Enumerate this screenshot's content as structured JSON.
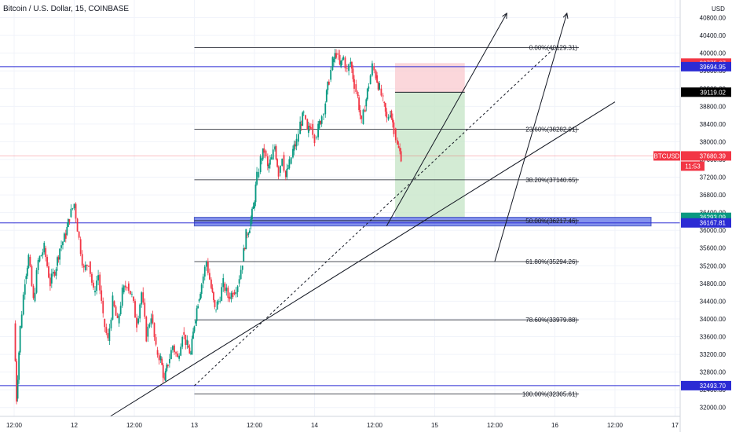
{
  "header": {
    "symbol_title": "Bitcoin / U.S. Dollar, 15, COINBASE",
    "currency": "USD"
  },
  "chart_data": {
    "type": "candlestick",
    "ylim": [
      31800,
      41200
    ],
    "y_ticks": [
      32000,
      32400,
      32800,
      33200,
      33600,
      34000,
      34400,
      34800,
      35200,
      35600,
      36000,
      36400,
      36800,
      37200,
      37600,
      38000,
      38400,
      38800,
      39200,
      39600,
      40000,
      40400,
      40800
    ],
    "x_ticks": [
      {
        "label": "12:00",
        "at": 0.0
      },
      {
        "label": "12",
        "at": 0.5
      },
      {
        "label": "12:00",
        "at": 1.0
      },
      {
        "label": "13",
        "at": 1.5
      },
      {
        "label": "12:00",
        "at": 2.0
      },
      {
        "label": "14",
        "at": 2.5
      },
      {
        "label": "12:00",
        "at": 3.0
      },
      {
        "label": "15",
        "at": 3.5
      },
      {
        "label": "12:00",
        "at": 4.0
      },
      {
        "label": "16",
        "at": 4.5
      },
      {
        "label": "12:00",
        "at": 5.0
      },
      {
        "label": "17",
        "at": 5.5
      }
    ],
    "price_path": [
      [
        0.0,
        33900
      ],
      [
        0.02,
        32200
      ],
      [
        0.05,
        33800
      ],
      [
        0.09,
        34900
      ],
      [
        0.12,
        35400
      ],
      [
        0.16,
        34400
      ],
      [
        0.2,
        35300
      ],
      [
        0.25,
        35600
      ],
      [
        0.3,
        34800
      ],
      [
        0.35,
        35200
      ],
      [
        0.38,
        35600
      ],
      [
        0.43,
        35900
      ],
      [
        0.46,
        36300
      ],
      [
        0.5,
        36600
      ],
      [
        0.54,
        35800
      ],
      [
        0.58,
        35100
      ],
      [
        0.62,
        35300
      ],
      [
        0.66,
        34600
      ],
      [
        0.7,
        35000
      ],
      [
        0.74,
        34000
      ],
      [
        0.78,
        33500
      ],
      [
        0.82,
        34400
      ],
      [
        0.86,
        33900
      ],
      [
        0.9,
        34600
      ],
      [
        0.94,
        34800
      ],
      [
        0.98,
        34500
      ],
      [
        1.02,
        33900
      ],
      [
        1.06,
        34600
      ],
      [
        1.1,
        33600
      ],
      [
        1.14,
        34100
      ],
      [
        1.18,
        33300
      ],
      [
        1.22,
        33100
      ],
      [
        1.25,
        32600
      ],
      [
        1.28,
        33000
      ],
      [
        1.32,
        33400
      ],
      [
        1.36,
        33100
      ],
      [
        1.4,
        33700
      ],
      [
        1.44,
        33400
      ],
      [
        1.47,
        33200
      ],
      [
        1.5,
        33900
      ],
      [
        1.53,
        34400
      ],
      [
        1.56,
        34800
      ],
      [
        1.6,
        35300
      ],
      [
        1.64,
        34700
      ],
      [
        1.67,
        34200
      ],
      [
        1.7,
        34400
      ],
      [
        1.74,
        34800
      ],
      [
        1.78,
        34500
      ],
      [
        1.82,
        34600
      ],
      [
        1.86,
        34800
      ],
      [
        1.9,
        35300
      ],
      [
        1.93,
        35900
      ],
      [
        1.96,
        36100
      ],
      [
        1.99,
        36500
      ],
      [
        2.02,
        37200
      ],
      [
        2.05,
        37600
      ],
      [
        2.08,
        37800
      ],
      [
        2.11,
        37400
      ],
      [
        2.14,
        37600
      ],
      [
        2.17,
        37900
      ],
      [
        2.2,
        37300
      ],
      [
        2.23,
        37700
      ],
      [
        2.26,
        37200
      ],
      [
        2.29,
        37500
      ],
      [
        2.32,
        37800
      ],
      [
        2.35,
        38000
      ],
      [
        2.38,
        38400
      ],
      [
        2.41,
        38600
      ],
      [
        2.44,
        38200
      ],
      [
        2.47,
        38400
      ],
      [
        2.5,
        38100
      ],
      [
        2.53,
        38300
      ],
      [
        2.56,
        38600
      ],
      [
        2.59,
        38900
      ],
      [
        2.62,
        39400
      ],
      [
        2.65,
        39800
      ],
      [
        2.68,
        40000
      ],
      [
        2.71,
        39700
      ],
      [
        2.74,
        39900
      ],
      [
        2.77,
        39600
      ],
      [
        2.8,
        39800
      ],
      [
        2.83,
        39300
      ],
      [
        2.86,
        39000
      ],
      [
        2.89,
        38400
      ],
      [
        2.92,
        38800
      ],
      [
        2.95,
        39300
      ],
      [
        2.98,
        39700
      ],
      [
        3.01,
        39500
      ],
      [
        3.04,
        39200
      ],
      [
        3.07,
        38900
      ],
      [
        3.1,
        38500
      ],
      [
        3.13,
        38700
      ],
      [
        3.16,
        38300
      ],
      [
        3.19,
        37900
      ],
      [
        3.22,
        37680
      ]
    ],
    "fib_levels": [
      {
        "ratio": "0.00%",
        "price": 40129.31,
        "label": "0.00%(40129.31)"
      },
      {
        "ratio": "23.60%",
        "price": 38282.91,
        "label": "23.60%(38282.91)"
      },
      {
        "ratio": "38.20%",
        "price": 37140.65,
        "label": "38.20%(37140.65)"
      },
      {
        "ratio": "50.00%",
        "price": 36217.46,
        "label": "50.00%(36217.46)"
      },
      {
        "ratio": "61.80%",
        "price": 35294.26,
        "label": "61.80%(35294.26)"
      },
      {
        "ratio": "78.60%",
        "price": 33979.88,
        "label": "78.60%(33979.88)"
      },
      {
        "ratio": "100.00%",
        "price": 32305.61,
        "label": "100.00%(32305.61)"
      }
    ],
    "horizontal_levels": [
      {
        "price": 39694.95,
        "label": "39694.95",
        "color": "#2b2bd4"
      },
      {
        "price": 36167.81,
        "label": "36167.81",
        "color": "#2b2bd4"
      },
      {
        "price": 32493.7,
        "label": "32493.70",
        "color": "#2b2bd4"
      }
    ],
    "price_tags": [
      {
        "price": 39775.67,
        "label": "39775.67",
        "bg": "#f23645",
        "fg": "#ffffff"
      },
      {
        "price": 39119.02,
        "label": "39119.02",
        "bg": "#000000",
        "fg": "#ffffff"
      },
      {
        "price": 37680.39,
        "label": "37680.39",
        "bg": "#f23645",
        "fg": "#ffffff"
      },
      {
        "price": 36293.09,
        "label": "36293.09",
        "bg": "#089981",
        "fg": "#ffffff"
      }
    ],
    "last_price": {
      "symbol": "BTCUSD",
      "price": 37680.39,
      "countdown": "11:53",
      "color": "#f23645"
    },
    "position": {
      "entry": 39119.02,
      "stop": 39775.67,
      "target": 36293.09,
      "t_start": 3.17,
      "t_end": 3.75,
      "stop_color": "#f9c9cf",
      "target_color": "#c8e6c9"
    },
    "support_zone": {
      "top": 36293.09,
      "bottom": 36100,
      "t_start": 1.5,
      "t_end": 5.3,
      "color": "#5b6ee8"
    },
    "trendlines": [
      {
        "from": [
          0.8,
          31800
        ],
        "to": [
          5.0,
          38900
        ],
        "style": "solid"
      },
      {
        "from": [
          1.5,
          32493.7
        ],
        "to": [
          4.5,
          40129.31
        ],
        "style": "dashed"
      }
    ],
    "arrows": [
      {
        "from": [
          3.1,
          36100
        ],
        "to": [
          4.1,
          40900
        ]
      },
      {
        "from": [
          4.0,
          35300
        ],
        "to": [
          4.6,
          40900
        ]
      }
    ],
    "colors": {
      "up": "#089981",
      "down": "#f23645",
      "fib": "#131722",
      "grid": "#f0f3fa"
    }
  }
}
